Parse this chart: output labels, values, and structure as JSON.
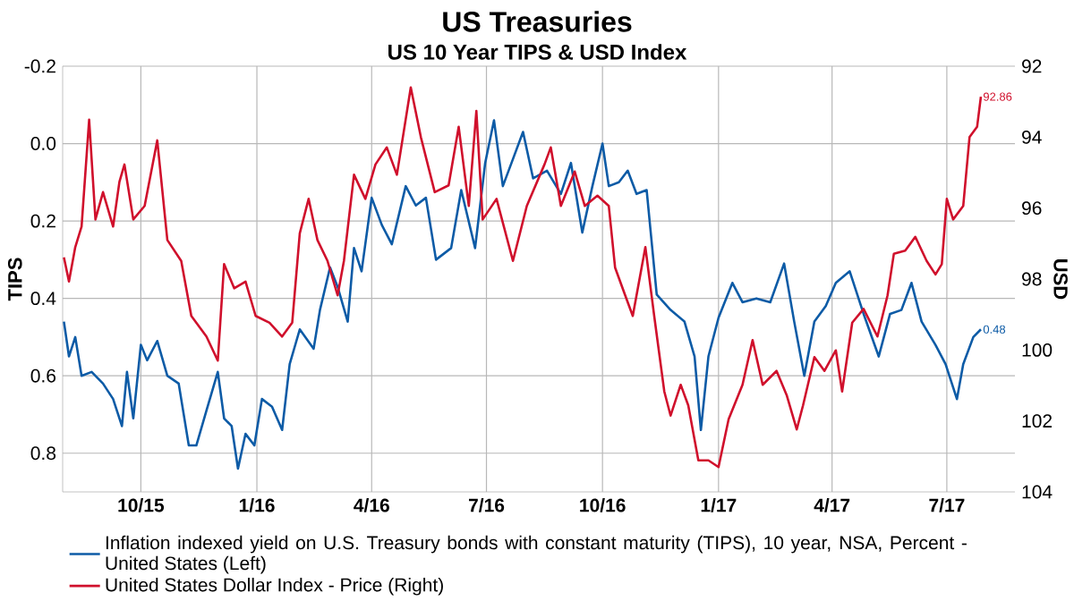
{
  "chart_data": {
    "type": "line",
    "title": "US Treasuries",
    "subtitle": "US 10 Year TIPS & USD Index",
    "ylabel": "TIPS",
    "y2label": "USD",
    "xlim": [
      "2015-07-31",
      "2017-08-24"
    ],
    "xticks": [
      {
        "value": "2015-10-01",
        "label": "10/15"
      },
      {
        "value": "2016-01-01",
        "label": "1/16"
      },
      {
        "value": "2016-04-01",
        "label": "4/16"
      },
      {
        "value": "2016-07-01",
        "label": "7/16"
      },
      {
        "value": "2016-10-01",
        "label": "10/16"
      },
      {
        "value": "2017-01-01",
        "label": "1/17"
      },
      {
        "value": "2017-04-01",
        "label": "4/17"
      },
      {
        "value": "2017-07-01",
        "label": "7/17"
      }
    ],
    "ylim": [
      0.9,
      -0.2
    ],
    "yticks": [
      -0.2,
      {
        "value": 0,
        "label": "0.0"
      },
      0.2,
      0.4,
      0.6,
      0.8
    ],
    "y2lim": [
      104,
      92
    ],
    "y2ticks": [
      92,
      94,
      96,
      98,
      100,
      102,
      104
    ],
    "grid": true,
    "legend": "bottom",
    "series": [
      {
        "name": "Inflation indexed yield on U.S. Treasury bonds with constant maturity (TIPS), 10 year, NSA, Percent - United States  (Left)",
        "color": "#0d5ba6",
        "x": [
          "2015-08-01",
          "2015-08-05",
          "2015-08-10",
          "2015-08-15",
          "2015-08-23",
          "2015-09-01",
          "2015-09-09",
          "2015-09-16",
          "2015-09-20",
          "2015-09-25",
          "2015-10-01",
          "2015-10-06",
          "2015-10-14",
          "2015-10-22",
          "2015-10-31",
          "2015-11-08",
          "2015-11-14",
          "2015-11-22",
          "2015-12-01",
          "2015-12-06",
          "2015-12-12",
          "2015-12-17",
          "2015-12-23",
          "2015-12-30",
          "2016-01-05",
          "2016-01-13",
          "2016-01-21",
          "2016-01-27",
          "2016-02-04",
          "2016-02-15",
          "2016-02-20",
          "2016-02-28",
          "2016-03-05",
          "2016-03-13",
          "2016-03-18",
          "2016-03-24",
          "2016-04-01",
          "2016-04-09",
          "2016-04-17",
          "2016-04-28",
          "2016-05-06",
          "2016-05-14",
          "2016-05-22",
          "2016-06-03",
          "2016-06-11",
          "2016-06-22",
          "2016-06-30",
          "2016-07-07",
          "2016-07-14",
          "2016-07-22",
          "2016-07-30",
          "2016-08-07",
          "2016-08-18",
          "2016-08-29",
          "2016-09-06",
          "2016-09-15",
          "2016-09-23",
          "2016-10-01",
          "2016-10-06",
          "2016-10-14",
          "2016-10-21",
          "2016-10-28",
          "2016-11-05",
          "2016-11-13",
          "2016-11-24",
          "2016-12-05",
          "2016-12-13",
          "2016-12-18",
          "2016-12-24",
          "2017-01-01",
          "2017-01-12",
          "2017-01-20",
          "2017-01-31",
          "2017-02-11",
          "2017-02-22",
          "2017-03-02",
          "2017-03-10",
          "2017-03-18",
          "2017-03-27",
          "2017-04-04",
          "2017-04-15",
          "2017-04-26",
          "2017-05-08",
          "2017-05-17",
          "2017-05-26",
          "2017-06-03",
          "2017-06-11",
          "2017-06-22",
          "2017-06-30",
          "2017-07-09",
          "2017-07-14",
          "2017-07-22",
          "2017-07-28"
        ],
        "values": [
          0.46,
          0.55,
          0.5,
          0.6,
          0.59,
          0.62,
          0.66,
          0.73,
          0.59,
          0.71,
          0.52,
          0.56,
          0.51,
          0.6,
          0.62,
          0.78,
          0.78,
          0.69,
          0.59,
          0.71,
          0.73,
          0.84,
          0.75,
          0.78,
          0.66,
          0.68,
          0.74,
          0.57,
          0.48,
          0.53,
          0.43,
          0.32,
          0.37,
          0.46,
          0.27,
          0.33,
          0.14,
          0.21,
          0.26,
          0.11,
          0.16,
          0.14,
          0.3,
          0.27,
          0.12,
          0.27,
          0.05,
          -0.06,
          0.11,
          0.04,
          -0.03,
          0.09,
          0.07,
          0.13,
          0.05,
          0.23,
          0.11,
          0.0,
          0.11,
          0.1,
          0.07,
          0.13,
          0.12,
          0.39,
          0.43,
          0.46,
          0.55,
          0.74,
          0.55,
          0.45,
          0.36,
          0.41,
          0.4,
          0.41,
          0.31,
          0.46,
          0.6,
          0.46,
          0.42,
          0.36,
          0.33,
          0.44,
          0.55,
          0.44,
          0.43,
          0.36,
          0.46,
          0.52,
          0.57,
          0.66,
          0.57,
          0.5,
          0.48
        ],
        "value_labels": [
          null,
          null,
          null,
          null,
          null,
          null,
          null,
          null,
          null,
          null,
          null,
          null,
          null,
          null,
          null,
          null,
          null,
          null,
          null,
          null,
          null,
          null,
          null,
          null,
          null,
          null,
          null,
          null,
          null,
          null,
          null,
          null,
          null,
          null,
          null,
          null,
          null,
          null,
          null,
          null,
          null,
          null,
          null,
          null,
          null,
          null,
          null,
          null,
          null,
          null,
          null,
          null,
          null,
          null,
          null,
          null,
          null,
          null,
          null,
          null,
          null,
          null,
          null,
          null,
          null,
          null,
          null,
          null,
          null,
          null,
          null,
          null,
          null,
          null,
          null,
          null,
          null,
          null,
          null,
          null,
          null,
          null,
          null,
          null,
          null,
          null,
          null,
          null,
          null,
          null,
          null,
          null,
          "0.48"
        ]
      },
      {
        "name": "United States Dollar Index - Price  (Right)",
        "color": "#d0102c",
        "axis": "y2",
        "x": [
          "2015-08-01",
          "2015-08-05",
          "2015-08-10",
          "2015-08-15",
          "2015-08-21",
          "2015-08-26",
          "2015-09-01",
          "2015-09-09",
          "2015-09-14",
          "2015-09-18",
          "2015-09-25",
          "2015-10-04",
          "2015-10-14",
          "2015-10-22",
          "2015-11-02",
          "2015-11-10",
          "2015-11-22",
          "2015-12-01",
          "2015-12-06",
          "2015-12-14",
          "2015-12-23",
          "2015-12-31",
          "2016-01-11",
          "2016-01-21",
          "2016-01-29",
          "2016-02-04",
          "2016-02-11",
          "2016-02-18",
          "2016-02-26",
          "2016-03-05",
          "2016-03-10",
          "2016-03-18",
          "2016-03-27",
          "2016-04-04",
          "2016-04-13",
          "2016-04-21",
          "2016-05-02",
          "2016-05-10",
          "2016-05-21",
          "2016-06-01",
          "2016-06-09",
          "2016-06-17",
          "2016-06-23",
          "2016-06-28",
          "2016-07-09",
          "2016-07-22",
          "2016-08-02",
          "2016-08-16",
          "2016-08-21",
          "2016-08-29",
          "2016-09-09",
          "2016-09-17",
          "2016-09-27",
          "2016-10-06",
          "2016-10-11",
          "2016-10-19",
          "2016-10-25",
          "2016-11-04",
          "2016-11-11",
          "2016-11-19",
          "2016-11-24",
          "2016-12-02",
          "2016-12-08",
          "2016-12-16",
          "2016-12-24",
          "2017-01-01",
          "2017-01-09",
          "2017-01-20",
          "2017-01-28",
          "2017-02-05",
          "2017-02-16",
          "2017-02-24",
          "2017-03-04",
          "2017-03-09",
          "2017-03-18",
          "2017-03-26",
          "2017-04-04",
          "2017-04-09",
          "2017-04-17",
          "2017-04-26",
          "2017-05-07",
          "2017-05-15",
          "2017-05-20",
          "2017-05-29",
          "2017-06-06",
          "2017-06-15",
          "2017-06-22",
          "2017-06-27",
          "2017-07-01",
          "2017-07-06",
          "2017-07-14",
          "2017-07-19",
          "2017-07-25",
          "2017-07-28"
        ],
        "values": [
          97.39,
          98.07,
          97.1,
          96.52,
          93.51,
          96.32,
          95.55,
          96.52,
          95.26,
          94.77,
          96.32,
          95.94,
          94.09,
          96.9,
          97.49,
          99.04,
          99.62,
          100.3,
          97.58,
          98.26,
          98.07,
          99.04,
          99.23,
          99.62,
          99.23,
          96.71,
          95.74,
          96.9,
          97.49,
          98.46,
          97.49,
          95.06,
          95.74,
          94.77,
          94.29,
          95.06,
          92.6,
          94.0,
          95.55,
          95.36,
          93.71,
          95.94,
          93.26,
          96.32,
          95.74,
          97.49,
          95.94,
          94.77,
          94.29,
          95.94,
          94.97,
          95.94,
          95.65,
          95.94,
          97.68,
          98.46,
          99.04,
          97.1,
          99.04,
          101.17,
          101.85,
          100.98,
          101.56,
          103.11,
          103.11,
          103.3,
          101.95,
          100.98,
          99.72,
          100.98,
          100.59,
          101.27,
          102.24,
          101.56,
          100.2,
          100.59,
          100.01,
          101.17,
          99.23,
          98.84,
          99.62,
          98.46,
          97.29,
          97.2,
          96.81,
          97.49,
          97.87,
          97.58,
          95.74,
          96.32,
          95.94,
          94.0,
          93.71,
          92.86
        ],
        "value_labels": [
          null,
          null,
          null,
          null,
          null,
          null,
          null,
          null,
          null,
          null,
          null,
          null,
          null,
          null,
          null,
          null,
          null,
          null,
          null,
          null,
          null,
          null,
          null,
          null,
          null,
          null,
          null,
          null,
          null,
          null,
          null,
          null,
          null,
          null,
          null,
          null,
          null,
          null,
          null,
          null,
          null,
          null,
          null,
          null,
          null,
          null,
          null,
          null,
          null,
          null,
          null,
          null,
          null,
          null,
          null,
          null,
          null,
          null,
          null,
          null,
          null,
          null,
          null,
          null,
          null,
          null,
          null,
          null,
          null,
          null,
          null,
          null,
          null,
          null,
          null,
          null,
          null,
          null,
          null,
          null,
          null,
          null,
          null,
          null,
          null,
          null,
          null,
          null,
          null,
          null,
          null,
          null,
          null,
          "92.86"
        ]
      }
    ]
  }
}
